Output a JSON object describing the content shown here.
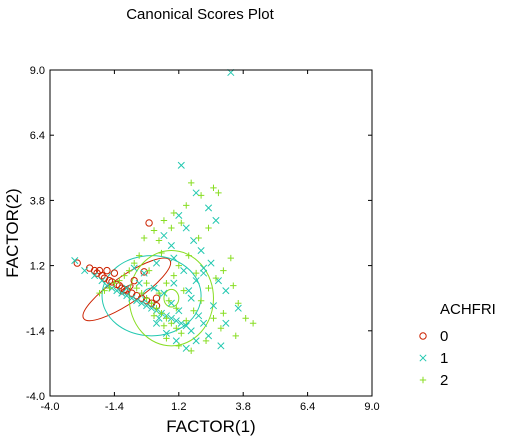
{
  "chart_data": {
    "type": "scatter",
    "title": "Canonical Scores Plot",
    "xlabel": "FACTOR(1)",
    "ylabel": "FACTOR(2)",
    "xlim": [
      -4.0,
      9.0
    ],
    "ylim": [
      -4.0,
      9.0
    ],
    "xticks": [
      "-4.0",
      "-1.4",
      "1.2",
      "3.8",
      "6.4",
      "9.0"
    ],
    "yticks": [
      "-4.0",
      "-1.4",
      "1.2",
      "3.8",
      "6.4",
      "9.0"
    ],
    "grid": false,
    "legend": {
      "title": "ACHFRI",
      "placement": "right",
      "entries": [
        "0",
        "1",
        "2"
      ]
    },
    "colors": {
      "0": "#cc2200",
      "1": "#22c8b0",
      "2": "#88dd22"
    },
    "series": [
      {
        "name": "0",
        "marker": "circle",
        "color": "#cc2200",
        "points": [
          [
            -2.9,
            1.3
          ],
          [
            -2.4,
            1.1
          ],
          [
            -2.2,
            1.0
          ],
          [
            -2.1,
            0.9
          ],
          [
            -2.0,
            1.0
          ],
          [
            -1.9,
            0.8
          ],
          [
            -1.7,
            1.0
          ],
          [
            -1.8,
            0.7
          ],
          [
            -1.6,
            0.6
          ],
          [
            -1.5,
            0.55
          ],
          [
            -1.3,
            0.45
          ],
          [
            -1.2,
            0.4
          ],
          [
            -1.1,
            0.3
          ],
          [
            -1.0,
            0.25
          ],
          [
            -0.9,
            0.2
          ],
          [
            -0.7,
            0.1
          ],
          [
            -0.5,
            0.0
          ],
          [
            -0.3,
            -0.1
          ],
          [
            -0.1,
            -0.2
          ],
          [
            0.1,
            -0.3
          ],
          [
            0.3,
            -0.4
          ],
          [
            0.0,
            2.9
          ],
          [
            -1.4,
            0.9
          ],
          [
            -0.2,
            0.95
          ],
          [
            -0.6,
            0.6
          ],
          [
            0.3,
            -0.1
          ]
        ]
      },
      {
        "name": "1",
        "marker": "x",
        "color": "#22c8b0",
        "points": [
          [
            3.3,
            8.9
          ],
          [
            1.3,
            5.2
          ],
          [
            -3.0,
            1.4
          ],
          [
            -2.6,
            1.0
          ],
          [
            -2.2,
            0.8
          ],
          [
            -1.9,
            0.6
          ],
          [
            -1.7,
            0.4
          ],
          [
            -1.5,
            0.3
          ],
          [
            -1.3,
            0.2
          ],
          [
            -1.1,
            0.1
          ],
          [
            -0.9,
            0.0
          ],
          [
            -0.7,
            -0.1
          ],
          [
            -0.5,
            -0.2
          ],
          [
            -0.3,
            -0.3
          ],
          [
            -0.1,
            -0.4
          ],
          [
            0.1,
            -0.5
          ],
          [
            0.3,
            -0.6
          ],
          [
            0.5,
            -0.7
          ],
          [
            0.7,
            -0.8
          ],
          [
            0.9,
            -0.9
          ],
          [
            1.1,
            -1.0
          ],
          [
            1.3,
            -1.1
          ],
          [
            1.5,
            -1.2
          ],
          [
            1.7,
            -1.4
          ],
          [
            -0.4,
            0.5
          ],
          [
            0.2,
            0.3
          ],
          [
            0.6,
            0.1
          ],
          [
            0.9,
            -0.3
          ],
          [
            1.2,
            -0.6
          ],
          [
            1.6,
            0.2
          ],
          [
            1.9,
            0.6
          ],
          [
            2.2,
            0.9
          ],
          [
            2.5,
            1.3
          ],
          [
            2.1,
            1.8
          ],
          [
            1.8,
            2.2
          ],
          [
            1.5,
            2.7
          ],
          [
            1.2,
            3.2
          ],
          [
            0.9,
            2.0
          ],
          [
            0.6,
            2.4
          ],
          [
            2.7,
            3.0
          ],
          [
            2.4,
            3.5
          ],
          [
            1.9,
            4.1
          ],
          [
            2.2,
            1.1
          ],
          [
            2.8,
            0.6
          ],
          [
            3.1,
            0.2
          ],
          [
            2.6,
            -0.4
          ],
          [
            2.2,
            -1.1
          ],
          [
            1.9,
            -1.8
          ],
          [
            1.5,
            -2.1
          ],
          [
            2.4,
            -1.6
          ],
          [
            3.1,
            -1.1
          ],
          [
            3.6,
            -0.5
          ],
          [
            2.9,
            -2.0
          ],
          [
            1.1,
            -1.8
          ],
          [
            0.7,
            -1.5
          ],
          [
            0.3,
            -1.1
          ],
          [
            -0.2,
            0.9
          ],
          [
            0.3,
            1.3
          ],
          [
            -0.6,
            1.1
          ],
          [
            1.0,
            0.5
          ],
          [
            1.4,
            1.0
          ],
          [
            1.0,
            1.5
          ],
          [
            2.0,
            -0.8
          ],
          [
            1.7,
            -0.1
          ],
          [
            0.4,
            -0.9
          ],
          [
            -0.9,
            0.3
          ]
        ]
      },
      {
        "name": "2",
        "marker": "plus",
        "color": "#88dd22",
        "points": [
          [
            1.7,
            4.5
          ],
          [
            2.6,
            4.3
          ],
          [
            2.1,
            4.0
          ],
          [
            1.5,
            3.6
          ],
          [
            1.0,
            3.3
          ],
          [
            0.6,
            3.0
          ],
          [
            0.2,
            2.6
          ],
          [
            -0.2,
            2.3
          ],
          [
            2.8,
            4.1
          ],
          [
            1.3,
            2.9
          ],
          [
            0.9,
            2.7
          ],
          [
            0.4,
            2.2
          ],
          [
            -0.4,
            1.6
          ],
          [
            -0.6,
            1.3
          ],
          [
            -0.8,
            1.0
          ],
          [
            -1.0,
            0.8
          ],
          [
            -1.2,
            0.6
          ],
          [
            -1.4,
            0.5
          ],
          [
            -1.6,
            0.3
          ],
          [
            -1.8,
            0.2
          ],
          [
            -2.0,
            0.1
          ],
          [
            -0.5,
            0.3
          ],
          [
            -0.3,
            0.1
          ],
          [
            -0.1,
            -0.1
          ],
          [
            0.1,
            -0.3
          ],
          [
            0.3,
            -0.5
          ],
          [
            0.5,
            -0.7
          ],
          [
            0.7,
            -0.9
          ],
          [
            0.9,
            -1.1
          ],
          [
            1.1,
            -1.3
          ],
          [
            1.3,
            -1.5
          ],
          [
            1.5,
            -1.0
          ],
          [
            1.8,
            -0.6
          ],
          [
            2.1,
            -0.2
          ],
          [
            2.4,
            0.3
          ],
          [
            2.7,
            0.7
          ],
          [
            3.0,
            1.0
          ],
          [
            3.3,
            1.5
          ],
          [
            3.4,
            0.4
          ],
          [
            3.6,
            -0.3
          ],
          [
            3.9,
            -0.9
          ],
          [
            4.2,
            -1.1
          ],
          [
            3.5,
            -1.6
          ],
          [
            2.9,
            -1.3
          ],
          [
            2.3,
            -1.8
          ],
          [
            1.7,
            -2.2
          ],
          [
            1.2,
            -2.0
          ],
          [
            0.7,
            -1.7
          ],
          [
            1.0,
            0.8
          ],
          [
            1.6,
            1.6
          ],
          [
            2.0,
            2.3
          ],
          [
            2.4,
            2.7
          ],
          [
            1.2,
            1.2
          ],
          [
            0.5,
            1.7
          ],
          [
            0.0,
            1.0
          ],
          [
            0.7,
            0.5
          ],
          [
            1.9,
            0.9
          ],
          [
            3.0,
            -0.7
          ],
          [
            2.6,
            -0.9
          ],
          [
            0.2,
            -0.8
          ],
          [
            -0.1,
            0.5
          ],
          [
            0.4,
            0.1
          ],
          [
            0.8,
            -0.2
          ],
          [
            1.4,
            0.2
          ],
          [
            1.1,
            -0.5
          ],
          [
            0.6,
            -1.2
          ]
        ]
      }
    ],
    "ellipses": [
      {
        "group": "0",
        "color": "#cc2200",
        "center": [
          -0.9,
          0.25
        ],
        "rx": 2.1,
        "ry": 0.55,
        "angle_deg": -34
      },
      {
        "group": "0",
        "color": "#cc2200",
        "center": [
          -0.9,
          0.25
        ],
        "rx": 0.3,
        "ry": 0.1,
        "angle_deg": -34
      },
      {
        "group": "1",
        "color": "#22c8b0",
        "center": [
          0.1,
          0.0
        ],
        "rx": 2.0,
        "ry": 1.6,
        "angle_deg": 0
      },
      {
        "group": "1",
        "color": "#22c8b0",
        "center": [
          0.1,
          0.0
        ],
        "rx": 0.35,
        "ry": 0.3,
        "angle_deg": 0
      },
      {
        "group": "2",
        "color": "#88dd22",
        "center": [
          0.9,
          -0.1
        ],
        "rx": 1.7,
        "ry": 1.9,
        "angle_deg": 0
      },
      {
        "group": "2",
        "color": "#88dd22",
        "center": [
          0.9,
          -0.1
        ],
        "rx": 0.3,
        "ry": 0.35,
        "angle_deg": 0
      }
    ]
  }
}
